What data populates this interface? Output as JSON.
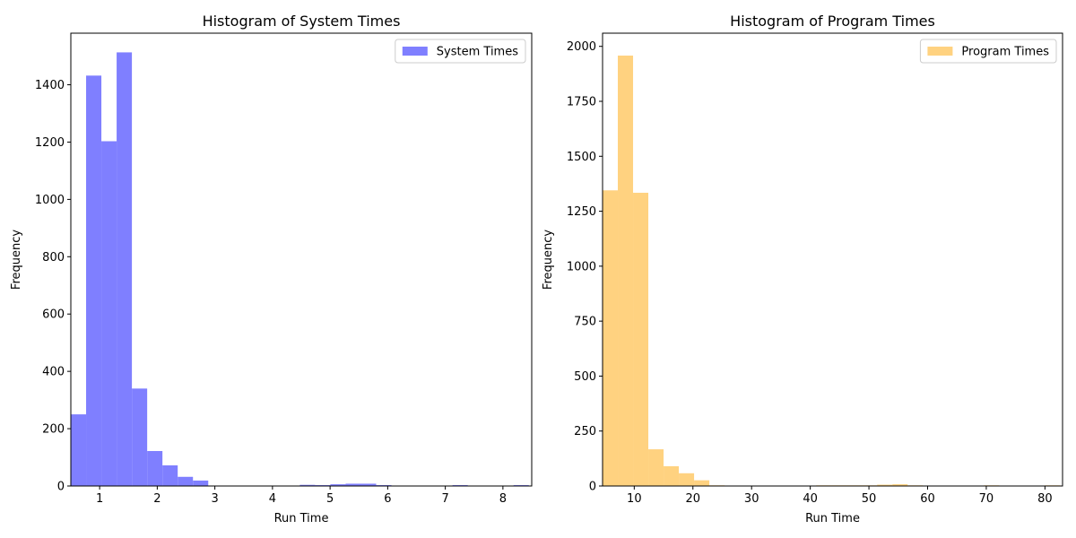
{
  "chart_data": [
    {
      "type": "bar",
      "title": "Histogram of System Times",
      "xlabel": "Run Time",
      "ylabel": "Frequency",
      "xlim": [
        0.5,
        8.5
      ],
      "ylim": [
        0,
        1580
      ],
      "xticks": [
        1,
        2,
        3,
        4,
        5,
        6,
        7,
        8
      ],
      "yticks": [
        0,
        200,
        400,
        600,
        800,
        1000,
        1200,
        1400
      ],
      "color": "#7f7fff",
      "legend_position": "top-right",
      "series": [
        {
          "name": "System Times",
          "bin_edges": [
            0.5,
            0.765,
            1.03,
            1.295,
            1.56,
            1.825,
            2.09,
            2.355,
            2.62,
            2.885,
            3.15,
            3.415,
            3.68,
            3.945,
            4.21,
            4.475,
            4.74,
            5.005,
            5.27,
            5.535,
            5.8,
            6.065,
            6.33,
            6.595,
            6.86,
            7.125,
            7.39,
            7.655,
            7.92,
            8.185,
            8.45
          ],
          "values": [
            250,
            1432,
            1203,
            1513,
            340,
            122,
            72,
            32,
            19,
            0,
            0,
            0,
            0,
            0,
            0,
            4,
            3,
            6,
            8,
            8,
            3,
            0,
            0,
            0,
            0,
            3,
            0,
            0,
            0,
            3
          ]
        }
      ]
    },
    {
      "type": "bar",
      "title": "Histogram of Program Times",
      "xlabel": "Run Time",
      "ylabel": "Frequency",
      "xlim": [
        4.6,
        83.0
      ],
      "ylim": [
        0,
        2060
      ],
      "xticks": [
        10,
        20,
        30,
        40,
        50,
        60,
        70,
        80
      ],
      "yticks": [
        0,
        250,
        500,
        750,
        1000,
        1250,
        1500,
        1750,
        2000
      ],
      "color": "#ffd280",
      "legend_position": "top-right",
      "series": [
        {
          "name": "Program Times",
          "bin_edges": [
            4.6,
            7.2,
            9.8,
            12.4,
            15.0,
            17.6,
            20.2,
            22.8,
            25.4,
            28.0,
            30.6,
            33.2,
            35.8,
            38.4,
            41.0,
            43.6,
            46.2,
            48.8,
            51.4,
            54.0,
            56.6,
            59.2,
            61.8,
            64.4,
            67.0,
            69.6,
            72.2,
            74.8,
            77.4,
            80.0,
            82.6
          ],
          "values": [
            1345,
            1958,
            1334,
            167,
            90,
            58,
            26,
            3,
            0,
            0,
            0,
            0,
            0,
            0,
            3,
            3,
            3,
            3,
            6,
            8,
            3,
            0,
            0,
            0,
            0,
            3,
            0,
            0,
            0,
            3
          ]
        }
      ]
    }
  ]
}
